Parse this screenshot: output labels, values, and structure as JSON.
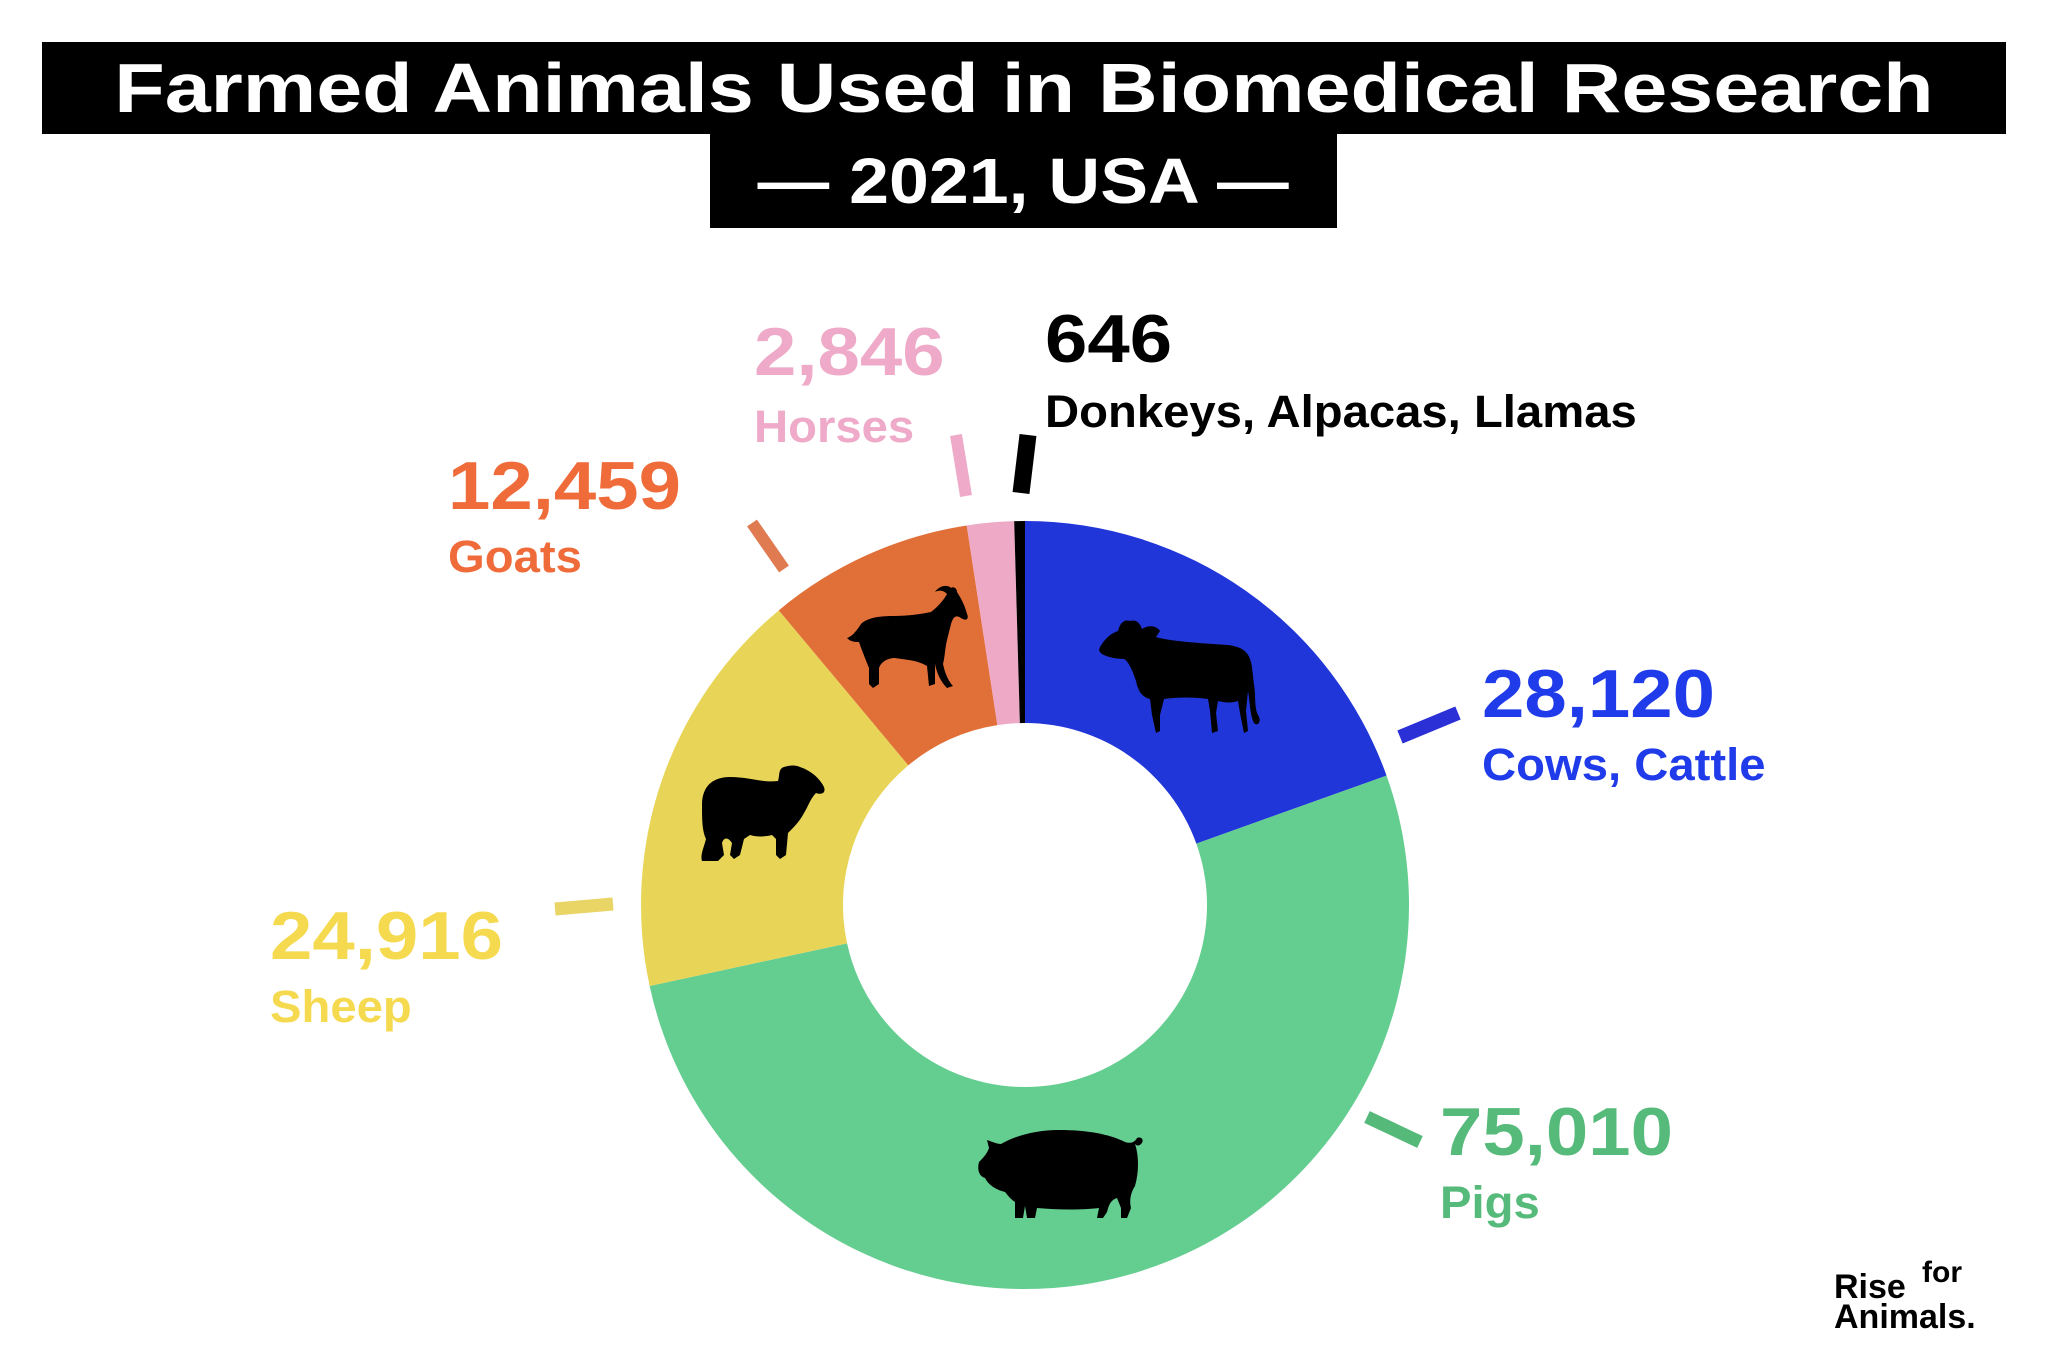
{
  "header": {
    "title": "Farmed Animals Used in Biomedical Research",
    "subtitle": "— 2021, USA —"
  },
  "logo": {
    "line1": "Rise",
    "superscript": "for",
    "line2": "Animals."
  },
  "labels": {
    "cows": {
      "value": "28,120",
      "name": "Cows, Cattle",
      "color": "#1f3bea"
    },
    "pigs": {
      "value": "75,010",
      "name": "Pigs",
      "color": "#56ba7a"
    },
    "sheep": {
      "value": "24,916",
      "name": "Sheep",
      "color": "#f5d94f"
    },
    "goats": {
      "value": "12,459",
      "name": "Goats",
      "color": "#ef6b3a"
    },
    "horses": {
      "value": "2,846",
      "name": "Horses",
      "color": "#eeaac8"
    },
    "donkeys": {
      "value": "646",
      "name": "Donkeys, Alpacas, Llamas",
      "color": "#000000"
    }
  },
  "chart_data": {
    "type": "pie",
    "subtype": "donut",
    "title": "Farmed Animals Used in Biomedical Research",
    "subtitle": "2021, USA",
    "categories": [
      "Cows, Cattle",
      "Pigs",
      "Sheep",
      "Goats",
      "Horses",
      "Donkeys, Alpacas, Llamas"
    ],
    "values": [
      28120,
      75010,
      24916,
      12459,
      2846,
      646
    ],
    "colors": [
      "#2036d9",
      "#64cd90",
      "#e8d558",
      "#e16f38",
      "#eea9c6",
      "#000000"
    ],
    "icons": [
      "cow-icon",
      "pig-icon",
      "sheep-icon",
      "goat-icon",
      null,
      null
    ],
    "start_angle": "12 o'clock",
    "direction": "clockwise",
    "legend": "direct labels with tick marks"
  }
}
